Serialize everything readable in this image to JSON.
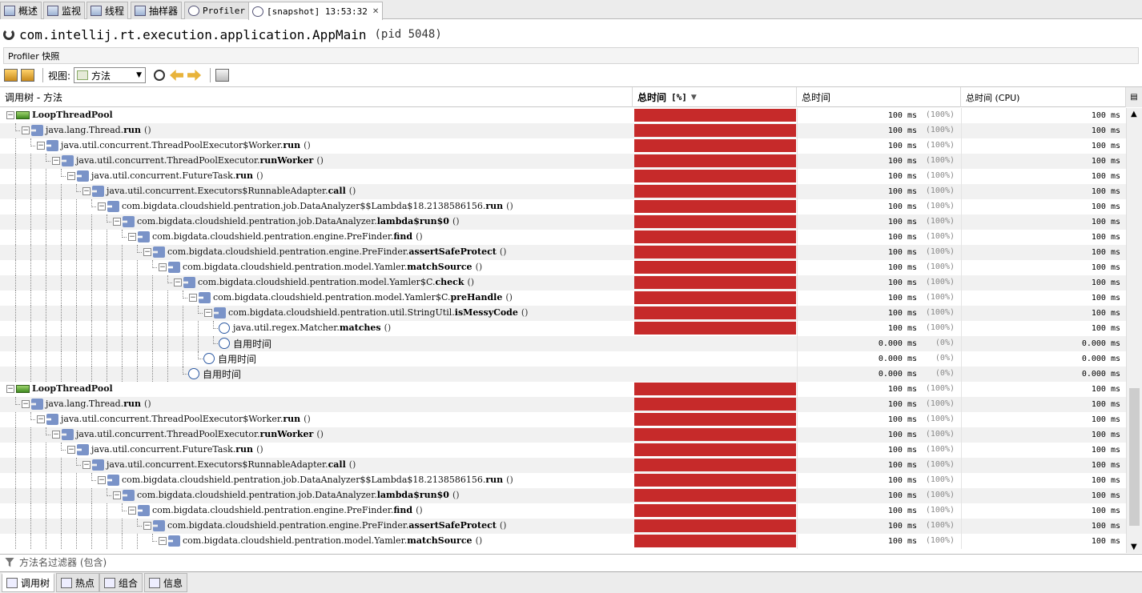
{
  "tabs": [
    {
      "label": "概述",
      "icon": "overview-icon"
    },
    {
      "label": "监视",
      "icon": "monitor-icon"
    },
    {
      "label": "线程",
      "icon": "threads-icon"
    },
    {
      "label": "抽样器",
      "icon": "sampler-icon"
    },
    {
      "label": "Profiler",
      "icon": "profiler-icon"
    },
    {
      "label": "[snapshot] 13:53:32",
      "icon": "snapshot-icon",
      "active": true
    }
  ],
  "title": {
    "app": "com.intellij.rt.execution.application.AppMain",
    "pid": "(pid 5048)"
  },
  "subheader": "Profiler 快照",
  "toolbar": {
    "view_label": "视图:",
    "view_value": "方法"
  },
  "columns": {
    "tree": "调用树 - 方法",
    "total_pct": "总时间",
    "total_pct_suffix": "[%]",
    "total": "总时间",
    "cpu": "总时间 (CPU)"
  },
  "rows": [
    {
      "d": 0,
      "k": "thread",
      "cls": "LoopThreadPool",
      "m": "",
      "a": "",
      "ms": "100 ms",
      "pct": "(100%)",
      "cpu": "100 ms",
      "bar": 1
    },
    {
      "d": 1,
      "k": "method",
      "cls": "java.lang.Thread.",
      "m": "run",
      "a": "()",
      "ms": "100 ms",
      "pct": "(100%)",
      "cpu": "100 ms",
      "bar": 1
    },
    {
      "d": 2,
      "k": "method",
      "cls": "java.util.concurrent.ThreadPoolExecutor$Worker.",
      "m": "run",
      "a": "()",
      "ms": "100 ms",
      "pct": "(100%)",
      "cpu": "100 ms",
      "bar": 1
    },
    {
      "d": 3,
      "k": "method",
      "cls": "java.util.concurrent.ThreadPoolExecutor.",
      "m": "runWorker",
      "a": "()",
      "ms": "100 ms",
      "pct": "(100%)",
      "cpu": "100 ms",
      "bar": 1
    },
    {
      "d": 4,
      "k": "method",
      "cls": "java.util.concurrent.FutureTask.",
      "m": "run",
      "a": "()",
      "ms": "100 ms",
      "pct": "(100%)",
      "cpu": "100 ms",
      "bar": 1
    },
    {
      "d": 5,
      "k": "method",
      "cls": "java.util.concurrent.Executors$RunnableAdapter.",
      "m": "call",
      "a": "()",
      "ms": "100 ms",
      "pct": "(100%)",
      "cpu": "100 ms",
      "bar": 1
    },
    {
      "d": 6,
      "k": "method",
      "cls": "com.bigdata.cloudshield.pentration.job.DataAnalyzer$$Lambda$18.2138586156.",
      "m": "run",
      "a": "()",
      "ms": "100 ms",
      "pct": "(100%)",
      "cpu": "100 ms",
      "bar": 1
    },
    {
      "d": 7,
      "k": "method",
      "cls": "com.bigdata.cloudshield.pentration.job.DataAnalyzer.",
      "m": "lambda$run$0",
      "a": "()",
      "ms": "100 ms",
      "pct": "(100%)",
      "cpu": "100 ms",
      "bar": 1
    },
    {
      "d": 8,
      "k": "method",
      "cls": "com.bigdata.cloudshield.pentration.engine.PreFinder.",
      "m": "find",
      "a": "()",
      "ms": "100 ms",
      "pct": "(100%)",
      "cpu": "100 ms",
      "bar": 1
    },
    {
      "d": 9,
      "k": "method",
      "cls": "com.bigdata.cloudshield.pentration.engine.PreFinder.",
      "m": "assertSafeProtect",
      "a": "()",
      "ms": "100 ms",
      "pct": "(100%)",
      "cpu": "100 ms",
      "bar": 1
    },
    {
      "d": 10,
      "k": "method",
      "cls": "com.bigdata.cloudshield.pentration.model.Yamler.",
      "m": "matchSource",
      "a": "()",
      "ms": "100 ms",
      "pct": "(100%)",
      "cpu": "100 ms",
      "bar": 1
    },
    {
      "d": 11,
      "k": "method",
      "cls": "com.bigdata.cloudshield.pentration.model.Yamler$C.",
      "m": "check",
      "a": "()",
      "ms": "100 ms",
      "pct": "(100%)",
      "cpu": "100 ms",
      "bar": 1
    },
    {
      "d": 12,
      "k": "method",
      "cls": "com.bigdata.cloudshield.pentration.model.Yamler$C.",
      "m": "preHandle",
      "a": "()",
      "ms": "100 ms",
      "pct": "(100%)",
      "cpu": "100 ms",
      "bar": 1
    },
    {
      "d": 13,
      "k": "method",
      "cls": "com.bigdata.cloudshield.pentration.util.StringUtil.",
      "m": "isMessyCode",
      "a": "()",
      "ms": "100 ms",
      "pct": "(100%)",
      "cpu": "100 ms",
      "bar": 1
    },
    {
      "d": 14,
      "k": "clock",
      "cls": "java.util.regex.Matcher.",
      "m": "matches",
      "a": "()",
      "ms": "100 ms",
      "pct": "(100%)",
      "cpu": "100 ms",
      "bar": 1
    },
    {
      "d": 14,
      "k": "self",
      "cls": "自用时间",
      "m": "",
      "a": "",
      "ms": "0.000 ms",
      "pct": "(0%)",
      "cpu": "0.000 ms",
      "bar": 0
    },
    {
      "d": 13,
      "k": "self",
      "cls": "自用时间",
      "m": "",
      "a": "",
      "ms": "0.000 ms",
      "pct": "(0%)",
      "cpu": "0.000 ms",
      "bar": 0
    },
    {
      "d": 12,
      "k": "self",
      "cls": "自用时间",
      "m": "",
      "a": "",
      "ms": "0.000 ms",
      "pct": "(0%)",
      "cpu": "0.000 ms",
      "bar": 0
    },
    {
      "d": 0,
      "k": "thread",
      "cls": "LoopThreadPool",
      "m": "",
      "a": "",
      "ms": "100 ms",
      "pct": "(100%)",
      "cpu": "100 ms",
      "bar": 1
    },
    {
      "d": 1,
      "k": "method",
      "cls": "java.lang.Thread.",
      "m": "run",
      "a": "()",
      "ms": "100 ms",
      "pct": "(100%)",
      "cpu": "100 ms",
      "bar": 1
    },
    {
      "d": 2,
      "k": "method",
      "cls": "java.util.concurrent.ThreadPoolExecutor$Worker.",
      "m": "run",
      "a": "()",
      "ms": "100 ms",
      "pct": "(100%)",
      "cpu": "100 ms",
      "bar": 1
    },
    {
      "d": 3,
      "k": "method",
      "cls": "java.util.concurrent.ThreadPoolExecutor.",
      "m": "runWorker",
      "a": "()",
      "ms": "100 ms",
      "pct": "(100%)",
      "cpu": "100 ms",
      "bar": 1
    },
    {
      "d": 4,
      "k": "method",
      "cls": "java.util.concurrent.FutureTask.",
      "m": "run",
      "a": "()",
      "ms": "100 ms",
      "pct": "(100%)",
      "cpu": "100 ms",
      "bar": 1
    },
    {
      "d": 5,
      "k": "method",
      "cls": "java.util.concurrent.Executors$RunnableAdapter.",
      "m": "call",
      "a": "()",
      "ms": "100 ms",
      "pct": "(100%)",
      "cpu": "100 ms",
      "bar": 1
    },
    {
      "d": 6,
      "k": "method",
      "cls": "com.bigdata.cloudshield.pentration.job.DataAnalyzer$$Lambda$18.2138586156.",
      "m": "run",
      "a": "()",
      "ms": "100 ms",
      "pct": "(100%)",
      "cpu": "100 ms",
      "bar": 1
    },
    {
      "d": 7,
      "k": "method",
      "cls": "com.bigdata.cloudshield.pentration.job.DataAnalyzer.",
      "m": "lambda$run$0",
      "a": "()",
      "ms": "100 ms",
      "pct": "(100%)",
      "cpu": "100 ms",
      "bar": 1
    },
    {
      "d": 8,
      "k": "method",
      "cls": "com.bigdata.cloudshield.pentration.engine.PreFinder.",
      "m": "find",
      "a": "()",
      "ms": "100 ms",
      "pct": "(100%)",
      "cpu": "100 ms",
      "bar": 1
    },
    {
      "d": 9,
      "k": "method",
      "cls": "com.bigdata.cloudshield.pentration.engine.PreFinder.",
      "m": "assertSafeProtect",
      "a": "()",
      "ms": "100 ms",
      "pct": "(100%)",
      "cpu": "100 ms",
      "bar": 1
    },
    {
      "d": 10,
      "k": "method",
      "cls": "com.bigdata.cloudshield.pentration.model.Yamler.",
      "m": "matchSource",
      "a": "()",
      "ms": "100 ms",
      "pct": "(100%)",
      "cpu": "100 ms",
      "bar": 1
    }
  ],
  "filter_placeholder": "方法名过滤器 (包含)",
  "bottom_tabs": [
    {
      "label": "调用树",
      "active": true
    },
    {
      "label": "热点"
    },
    {
      "label": "组合"
    },
    {
      "label": "信息"
    }
  ],
  "colors": {
    "bar": "#c62a2a"
  }
}
